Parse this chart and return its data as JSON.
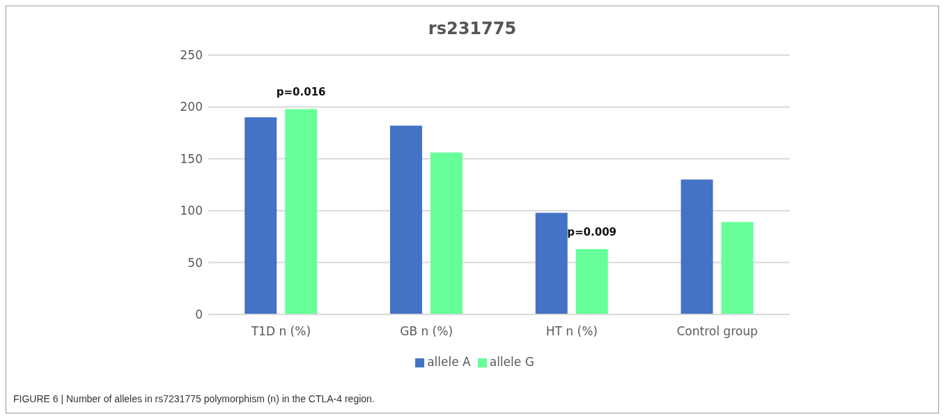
{
  "chart_data": {
    "type": "bar",
    "title": "rs231775",
    "categories": [
      "T1D n (%)",
      "GB n (%)",
      "HT n (%)",
      "Control group"
    ],
    "series": [
      {
        "name": "allele A",
        "color": "#4472c4",
        "values": [
          190,
          182,
          98,
          130
        ]
      },
      {
        "name": "allele G",
        "color": "#66ff99",
        "values": [
          198,
          156,
          63,
          89
        ]
      }
    ],
    "ylim": [
      0,
      250
    ],
    "yticks": [
      0,
      50,
      100,
      150,
      200,
      250
    ],
    "grid": "y",
    "legend": "bottom",
    "annotations": [
      "p=0.016",
      "p=0.009",
      "FIGURE 6 | Number of alleles in rs7231775 polymorphism (n) in the CTLA-4 region."
    ]
  }
}
